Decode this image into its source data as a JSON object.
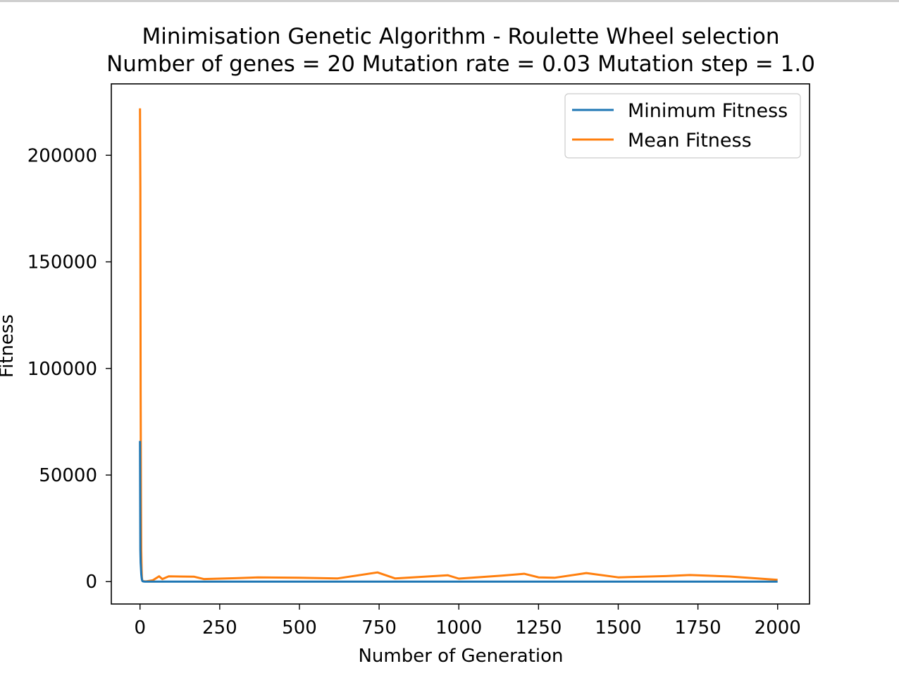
{
  "chart_data": {
    "type": "line",
    "title": "Minimisation Genetic Algorithm - Roulette Wheel selection",
    "subtitle": "Number of genes = 20 Mutation rate = 0.03 Mutation step = 1.0",
    "xlabel": "Number of Generation",
    "ylabel": "Fitness",
    "xlim": [
      -90,
      2100
    ],
    "ylim": [
      -10500,
      233500
    ],
    "xticks": [
      0,
      250,
      500,
      750,
      1000,
      1250,
      1500,
      1750,
      2000
    ],
    "xtick_labels": [
      "0",
      "250",
      "500",
      "750",
      "1000",
      "1250",
      "1500",
      "1750",
      "2000"
    ],
    "yticks": [
      0,
      50000,
      100000,
      150000,
      200000
    ],
    "ytick_labels": [
      "0",
      "50000",
      "100000",
      "150000",
      "200000"
    ],
    "legend_position": "top-right",
    "grid": false,
    "series": [
      {
        "name": "Minimum Fitness",
        "color": "#1f77b4",
        "x": [
          0,
          1,
          2,
          3,
          4,
          5,
          6,
          7,
          8,
          10,
          15,
          20,
          100,
          500,
          1000,
          1500,
          2000
        ],
        "y": [
          66000,
          15000,
          9000,
          6000,
          3500,
          2000,
          1000,
          500,
          200,
          80,
          30,
          10,
          5,
          5,
          5,
          5,
          5
        ]
      },
      {
        "name": "Mean Fitness",
        "color": "#ff7f0e",
        "x": [
          0,
          1,
          2,
          3,
          4,
          5,
          6,
          7,
          8,
          10,
          15,
          20,
          40,
          60,
          70,
          90,
          170,
          200,
          300,
          370,
          500,
          620,
          745,
          800,
          965,
          1000,
          1135,
          1205,
          1250,
          1300,
          1400,
          1500,
          1650,
          1725,
          1850,
          2000
        ],
        "y": [
          222000,
          185000,
          90000,
          40000,
          15000,
          6000,
          2000,
          500,
          300,
          200,
          150,
          100,
          600,
          2500,
          1200,
          2500,
          2300,
          1200,
          1600,
          2000,
          1800,
          1500,
          4300,
          1500,
          3000,
          1400,
          2800,
          3700,
          2000,
          1800,
          4000,
          2000,
          2600,
          3100,
          2400,
          800
        ]
      }
    ]
  }
}
